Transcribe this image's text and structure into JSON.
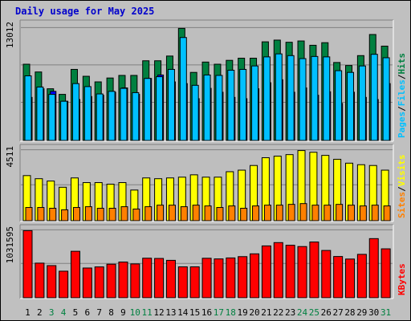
{
  "title": "Daily usage for May 2025",
  "colors": {
    "hits": "#008040",
    "files": "#00c0ff",
    "pages": "#0000ff",
    "sites": "#ff8000",
    "visits": "#ffff00",
    "kbytes": "#ff0000",
    "grid": "#808080",
    "panel": "#bebebe",
    "background": "#c0c0c0",
    "weekend": "#008040",
    "weekday": "#000000"
  },
  "x_labels": [
    "1",
    "2",
    "3",
    "4",
    "5",
    "6",
    "7",
    "8",
    "9",
    "10",
    "11",
    "12",
    "13",
    "14",
    "15",
    "16",
    "17",
    "18",
    "19",
    "20",
    "21",
    "22",
    "23",
    "24",
    "25",
    "26",
    "27",
    "28",
    "29",
    "30",
    "31"
  ],
  "weekend_days": [
    3,
    4,
    10,
    11,
    17,
    18,
    24,
    25,
    31
  ],
  "chart_data": [
    {
      "type": "bar",
      "name": "hits-files-pages",
      "ymax_label": "13012",
      "ylim": [
        0,
        13012
      ],
      "grid": true,
      "side_labels": [
        {
          "text": "Pages",
          "color": "#00c0ff"
        },
        {
          "text": "/",
          "color": "#000000"
        },
        {
          "text": "Files",
          "color": "#00c0ff"
        },
        {
          "text": "/",
          "color": "#000000"
        },
        {
          "text": "Hits",
          "color": "#008040"
        }
      ],
      "categories": [
        "1",
        "2",
        "3",
        "4",
        "5",
        "6",
        "7",
        "8",
        "9",
        "10",
        "11",
        "12",
        "13",
        "14",
        "15",
        "16",
        "17",
        "18",
        "19",
        "20",
        "21",
        "22",
        "23",
        "24",
        "25",
        "26",
        "27",
        "28",
        "29",
        "30",
        "31"
      ],
      "series": [
        {
          "name": "Hits",
          "values": [
            8850,
            7950,
            6000,
            5350,
            8250,
            7450,
            6800,
            7250,
            7550,
            7550,
            9250,
            9250,
            9800,
            13012,
            7900,
            9100,
            8850,
            9300,
            9550,
            9550,
            11450,
            11650,
            11400,
            11550,
            11050,
            11350,
            9050,
            8700,
            9850,
            12300,
            10950
          ]
        },
        {
          "name": "Files",
          "values": [
            7500,
            6200,
            5350,
            4550,
            6600,
            6250,
            5400,
            5700,
            6050,
            5550,
            7200,
            7400,
            8250,
            11950,
            6400,
            7600,
            7550,
            8150,
            8250,
            8650,
            9700,
            10050,
            9850,
            9500,
            9750,
            9700,
            8100,
            7900,
            8650,
            10000,
            9600
          ]
        },
        {
          "name": "Pages",
          "values": [
            5000,
            6000,
            5700,
            4550,
            4750,
            5100,
            5250,
            5600,
            6100,
            5350,
            7200,
            7600,
            6800,
            6600,
            4850,
            6050,
            5600,
            5000,
            4850,
            6000,
            6700,
            7050,
            5600,
            6100,
            5250,
            5650,
            4300,
            5600,
            5000,
            4750,
            6600
          ]
        }
      ]
    },
    {
      "type": "bar",
      "name": "visits-sites",
      "ymax_label": "4511",
      "ylim": [
        0,
        4511
      ],
      "grid": true,
      "side_labels": [
        {
          "text": "Sites",
          "color": "#ff8000"
        },
        {
          "text": "/",
          "color": "#000000"
        },
        {
          "text": "Visits",
          "color": "#ffff00"
        }
      ],
      "categories": [
        "1",
        "2",
        "3",
        "4",
        "5",
        "6",
        "7",
        "8",
        "9",
        "10",
        "11",
        "12",
        "13",
        "14",
        "15",
        "16",
        "17",
        "18",
        "19",
        "20",
        "21",
        "22",
        "23",
        "24",
        "25",
        "26",
        "27",
        "28",
        "29",
        "30",
        "31"
      ],
      "series": [
        {
          "name": "Visits",
          "values": [
            2900,
            2700,
            2550,
            2150,
            2750,
            2450,
            2450,
            2350,
            2450,
            1970,
            2750,
            2700,
            2750,
            2800,
            2950,
            2800,
            2800,
            3150,
            3250,
            3550,
            4050,
            4150,
            4250,
            4511,
            4400,
            4200,
            3950,
            3700,
            3600,
            3550,
            3250
          ]
        },
        {
          "name": "Sites",
          "values": [
            850,
            850,
            800,
            700,
            850,
            900,
            800,
            800,
            900,
            750,
            900,
            1000,
            1000,
            900,
            1000,
            950,
            850,
            950,
            800,
            950,
            1000,
            1000,
            1050,
            1100,
            1000,
            1000,
            1050,
            1000,
            950,
            1000,
            950
          ]
        }
      ]
    },
    {
      "type": "bar",
      "name": "kbytes",
      "ymax_label": "1031595",
      "ylim": [
        0,
        1031595
      ],
      "grid": true,
      "side_labels": [
        {
          "text": "KBytes",
          "color": "#ff0000"
        }
      ],
      "categories": [
        "1",
        "2",
        "3",
        "4",
        "5",
        "6",
        "7",
        "8",
        "9",
        "10",
        "11",
        "12",
        "13",
        "14",
        "15",
        "16",
        "17",
        "18",
        "19",
        "20",
        "21",
        "22",
        "23",
        "24",
        "25",
        "26",
        "27",
        "28",
        "29",
        "30",
        "31"
      ],
      "series": [
        {
          "name": "KBytes",
          "values": [
            1031595,
            532000,
            494000,
            408000,
            714000,
            457000,
            474000,
            516000,
            549000,
            520000,
            608000,
            604000,
            575000,
            475000,
            475000,
            607000,
            597000,
            612000,
            632000,
            675000,
            797000,
            848000,
            807000,
            787000,
            857000,
            727000,
            634000,
            595000,
            667000,
            909000,
            752000
          ]
        }
      ]
    }
  ]
}
